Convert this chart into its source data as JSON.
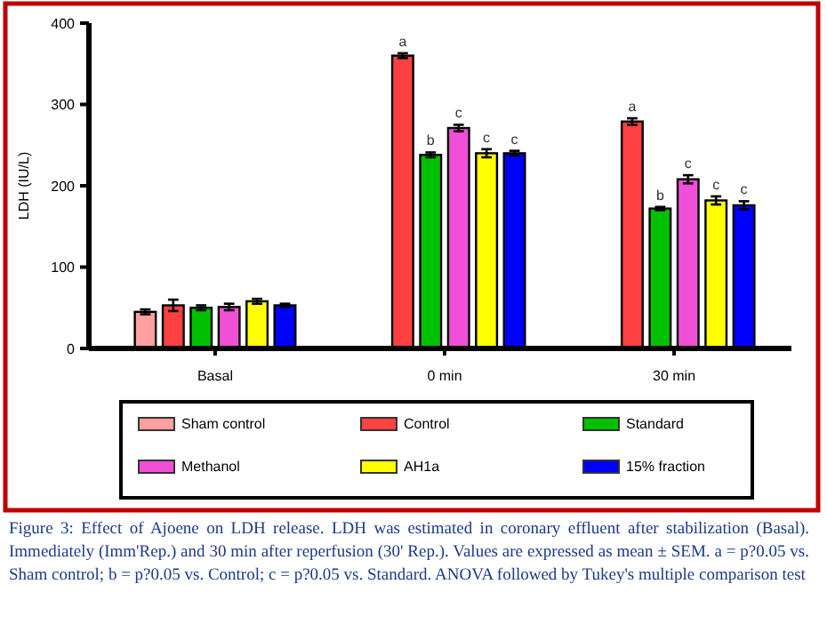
{
  "chart_data": {
    "type": "bar",
    "ylabel": "LDH (IU/L)",
    "categories": [
      "Basal",
      "0 min",
      "30 min"
    ],
    "series": [
      {
        "name": "Sham control",
        "color": "#ff9f9f",
        "values": [
          45,
          null,
          null
        ],
        "errors": [
          3,
          null,
          null
        ]
      },
      {
        "name": "Control",
        "color": "#ff4040",
        "values": [
          53,
          360,
          279
        ],
        "errors": [
          7,
          3,
          4
        ],
        "value_labels": [
          null,
          "a",
          "a"
        ]
      },
      {
        "name": "Standard",
        "color": "#00c000",
        "values": [
          50,
          238,
          172
        ],
        "errors": [
          3,
          3,
          2
        ],
        "value_labels": [
          null,
          "b",
          "b"
        ]
      },
      {
        "name": "Methanol",
        "color": "#f050d8",
        "values": [
          51,
          271,
          208
        ],
        "errors": [
          4,
          4,
          5
        ],
        "value_labels": [
          null,
          "c",
          "c"
        ]
      },
      {
        "name": "AH1a",
        "color": "#ffff00",
        "values": [
          58,
          240,
          182
        ],
        "errors": [
          3,
          5,
          5
        ],
        "value_labels": [
          null,
          "c",
          "c"
        ]
      },
      {
        "name": "15% fraction",
        "color": "#0000ff",
        "values": [
          53,
          240,
          176
        ],
        "errors": [
          2,
          3,
          5
        ],
        "value_labels": [
          null,
          "c",
          "c"
        ]
      }
    ],
    "ylim": [
      0,
      400
    ],
    "yticks": [
      0,
      100,
      200,
      300,
      400
    ],
    "grid": false,
    "legend": "bottom",
    "annotations": [
      "Figure 3: Effect of Ajoene on LDH release. LDH was estimated in coronary effluent after stabilization (Basal). Immediately (Imm'Rep.) and 30 min after reperfusion (30' Rep.). Values are expressed as mean ± SEM. a = p?0.05 vs. Sham control; b = p?0.05 vs. Control; c = p?0.05 vs. Standard. ANOVA followed by Tukey's multiple comparison test"
    ]
  }
}
